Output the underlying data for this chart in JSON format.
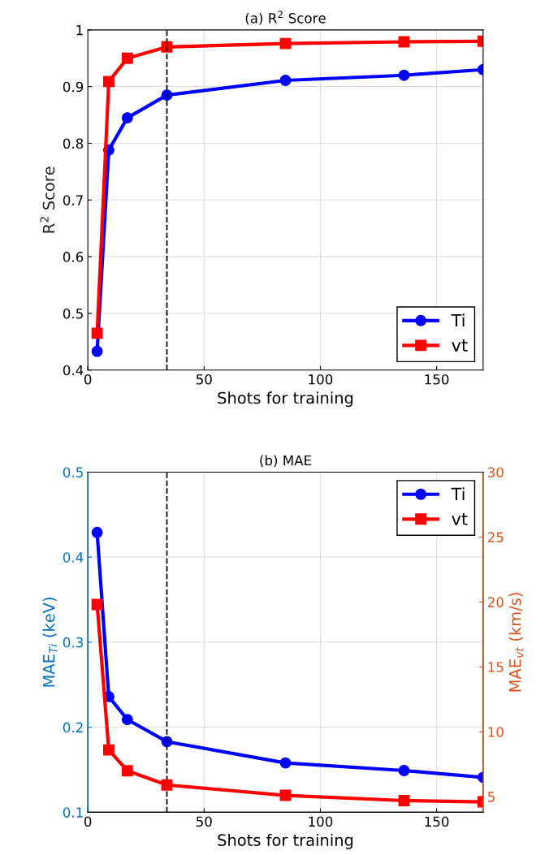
{
  "chart_data": [
    {
      "type": "line",
      "title": "(a) R$^{2}$ Score",
      "xlabel": "Shots for training",
      "ylabel": "R$^{2}$ Score",
      "x": [
        4,
        9,
        17,
        34,
        85,
        136,
        170
      ],
      "series": [
        {
          "name": "Ti",
          "color": "#0000ff",
          "marker": "circle",
          "values": [
            0.433,
            0.788,
            0.845,
            0.885,
            0.911,
            0.92,
            0.93
          ]
        },
        {
          "name": "vt",
          "color": "#ff0000",
          "marker": "square",
          "values": [
            0.465,
            0.909,
            0.95,
            0.97,
            0.976,
            0.979,
            0.98
          ]
        }
      ],
      "xlim": [
        0,
        170
      ],
      "xticks": [
        0,
        50,
        100,
        150
      ],
      "ylim": [
        0.4,
        1
      ],
      "yticks": [
        0.4,
        0.5,
        0.6,
        0.7,
        0.8,
        0.9,
        1
      ],
      "ref_lines": [
        {
          "axis": "x",
          "value": 34,
          "color": "#000000",
          "line_style": "dashed"
        }
      ],
      "grid": true,
      "legend": "bottom right"
    },
    {
      "type": "line",
      "title": "(b) MAE",
      "xlabel": "Shots for training",
      "ylabel": "MAE$_{Ti}$ (keV)",
      "y2label": "MAE$_{vt}$ (km/s)",
      "x": [
        4,
        9,
        17,
        34,
        85,
        136,
        170
      ],
      "series": [
        {
          "name": "Ti",
          "color": "#0000ff",
          "marker": "circle",
          "values": [
            0.429,
            0.236,
            0.209,
            0.183,
            0.158,
            0.149,
            0.141
          ]
        },
        {
          "name": "vt",
          "color": "#ff0000",
          "marker": "square",
          "axis": "y2",
          "values": [
            19.8,
            8.6,
            7.0,
            5.9,
            5.1,
            4.7,
            4.6
          ]
        }
      ],
      "xlim": [
        0,
        170
      ],
      "xticks": [
        0,
        50,
        100,
        150
      ],
      "ylim": [
        0.1,
        0.5
      ],
      "yticks": [
        0.1,
        0.2,
        0.3,
        0.4,
        0.5
      ],
      "y2lim": [
        3.8,
        30
      ],
      "y2ticks": [
        5,
        10,
        15,
        20,
        25,
        30
      ],
      "ref_lines": [
        {
          "axis": "x",
          "value": 34,
          "color": "#000000",
          "line_style": "dashed"
        }
      ],
      "grid": true,
      "legend": "top right"
    }
  ]
}
